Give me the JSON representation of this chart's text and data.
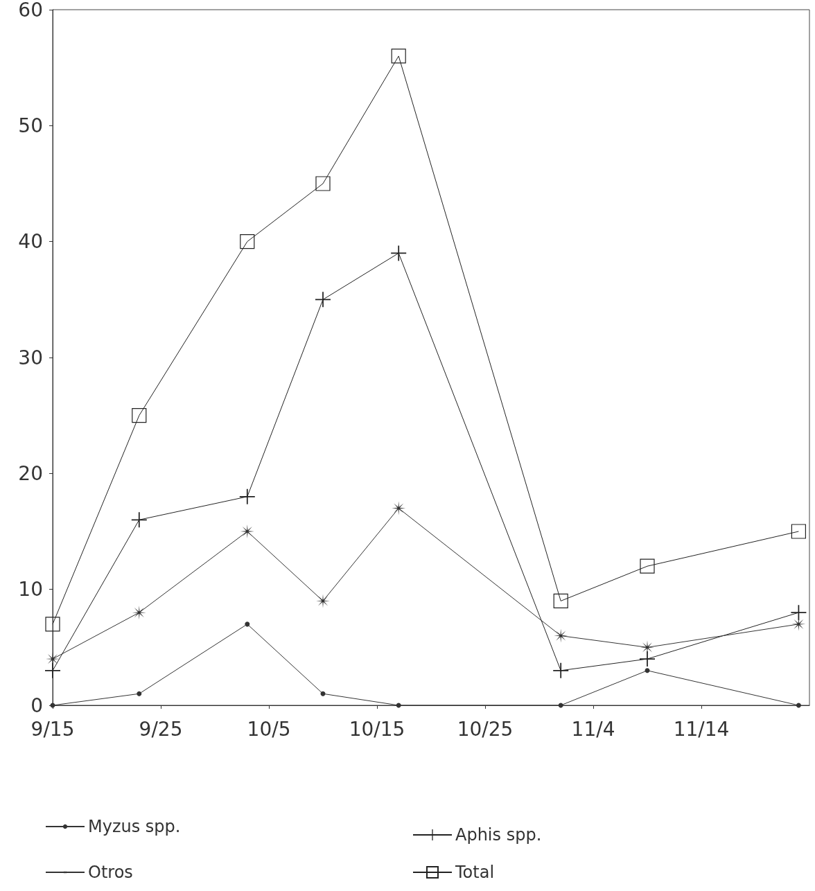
{
  "chart_data": {
    "type": "line",
    "x": [
      "--09-15",
      "--09-23",
      "--10-03",
      "--10-10",
      "--10-17",
      "--11-01",
      "--11-09",
      "--11-23"
    ],
    "series": [
      {
        "name": "Myzus spp.",
        "color": "#333333",
        "marker": "circle",
        "values": [
          0,
          1,
          7,
          1,
          0,
          0,
          3,
          0
        ]
      },
      {
        "name": "Aphis spp.",
        "color": "#222222",
        "marker": "cross",
        "values": [
          3,
          16,
          18,
          35,
          39,
          3,
          4,
          8
        ]
      },
      {
        "name": "Otros",
        "color": "#333333",
        "marker": "star",
        "values": [
          4,
          8,
          15,
          9,
          17,
          6,
          5,
          7
        ]
      },
      {
        "name": "Total",
        "color": "#222222",
        "marker": "square",
        "values": [
          7,
          25,
          40,
          45,
          56,
          9,
          12,
          15
        ]
      }
    ],
    "xlim": [
      "--09-15",
      "--11-24"
    ],
    "xticks": [
      {
        "value": "--09-15",
        "label": "9/15"
      },
      {
        "value": "--09-25",
        "label": "9/25"
      },
      {
        "value": "--10-05",
        "label": "10/5"
      },
      {
        "value": "--10-15",
        "label": "10/15"
      },
      {
        "value": "--10-25",
        "label": "10/25"
      },
      {
        "value": "--11-04",
        "label": "11/4"
      },
      {
        "value": "--11-14",
        "label": "11/14"
      }
    ],
    "ylim": [
      0,
      60
    ],
    "yticks": [
      0,
      10,
      20,
      30,
      40,
      50,
      60
    ],
    "grid": false,
    "legend": "bottom",
    "line_style": "solid"
  }
}
